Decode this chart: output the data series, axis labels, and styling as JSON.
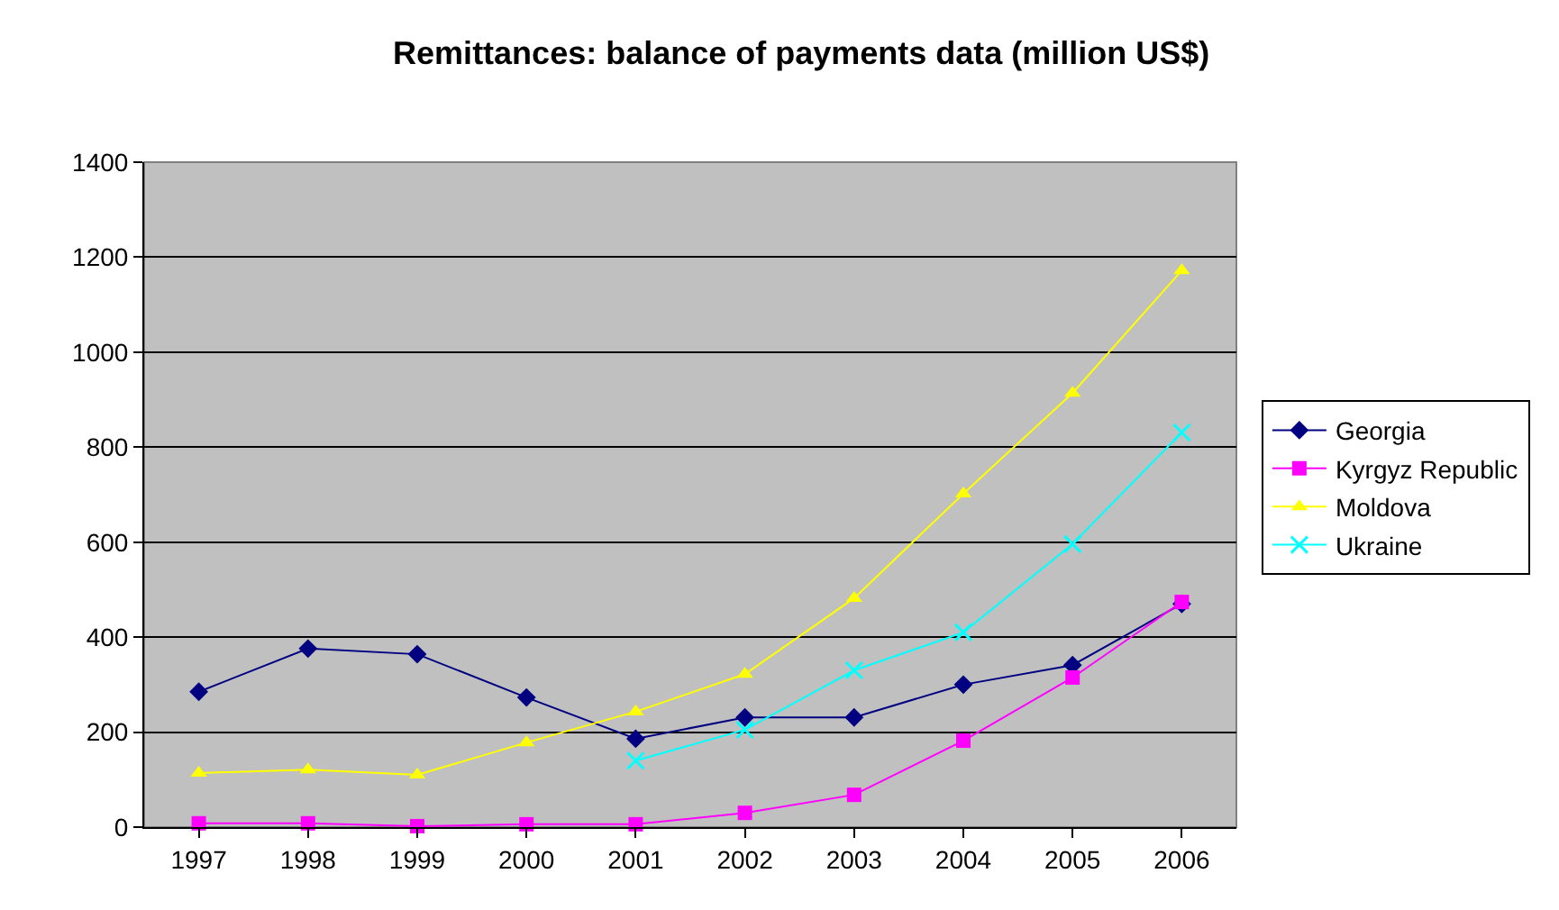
{
  "chart_data": {
    "type": "line",
    "title": "Remittances: balance of payments data (million US$)",
    "categories": [
      "1997",
      "1998",
      "1999",
      "2000",
      "2001",
      "2002",
      "2003",
      "2004",
      "2005",
      "2006"
    ],
    "series": [
      {
        "name": "Georgia",
        "color": "#000080",
        "marker": "diamond",
        "values": [
          285,
          376,
          364,
          273,
          186,
          231,
          231,
          300,
          341,
          470
        ]
      },
      {
        "name": "Kyrgyz Republic",
        "color": "#ff00ff",
        "marker": "square",
        "values": [
          8,
          8,
          2,
          6,
          6,
          30,
          68,
          182,
          315,
          474
        ]
      },
      {
        "name": "Moldova",
        "color": "#ffff00",
        "marker": "triangle",
        "values": [
          114,
          121,
          110,
          178,
          243,
          322,
          482,
          702,
          914,
          1172
        ]
      },
      {
        "name": "Ukraine",
        "color": "#00ffff",
        "marker": "cross",
        "values": [
          null,
          null,
          null,
          null,
          140,
          205,
          330,
          410,
          596,
          831
        ]
      }
    ],
    "ylim": [
      0,
      1400
    ],
    "yticks": [
      0,
      200,
      400,
      600,
      800,
      1000,
      1200,
      1400
    ],
    "grid": "y",
    "legend": "right",
    "line_style": "solid"
  }
}
